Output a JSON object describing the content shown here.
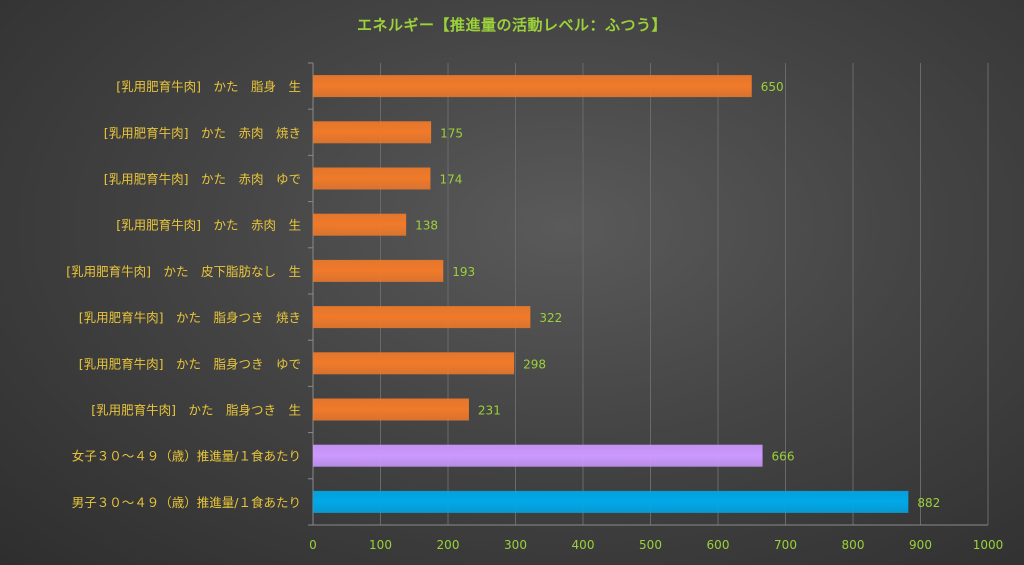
{
  "chart_data": {
    "type": "bar",
    "orientation": "horizontal",
    "title": "エネルギー【推進量の活動レベル：ふつう】",
    "categories": [
      "[乳用肥育牛肉]　かた　脂身　生",
      "[乳用肥育牛肉]　かた　赤肉　焼き",
      "[乳用肥育牛肉]　かた　赤肉　ゆで",
      "[乳用肥育牛肉]　かた　赤肉　生",
      "[乳用肥育牛肉]　かた　皮下脂肪なし　生",
      "[乳用肥育牛肉]　かた　脂身つき　焼き",
      "[乳用肥育牛肉]　かた　脂身つき　ゆで",
      "[乳用肥育牛肉]　かた　脂身つき　生",
      "女子３０～４９（歳）推進量/１食あたり",
      "男子３０～４９（歳）推進量/１食あたり"
    ],
    "values": [
      650,
      175,
      174,
      138,
      193,
      322,
      298,
      231,
      666,
      882
    ],
    "bar_colors": [
      "#f07a2a",
      "#f07a2a",
      "#f07a2a",
      "#f07a2a",
      "#f07a2a",
      "#f07a2a",
      "#f07a2a",
      "#f07a2a",
      "#cc99ff",
      "#00a8e8"
    ],
    "xlim": [
      0,
      1000
    ],
    "x_ticks": [
      0,
      100,
      200,
      300,
      400,
      500,
      600,
      700,
      800,
      900,
      1000
    ],
    "grid": true,
    "legend": "none"
  }
}
